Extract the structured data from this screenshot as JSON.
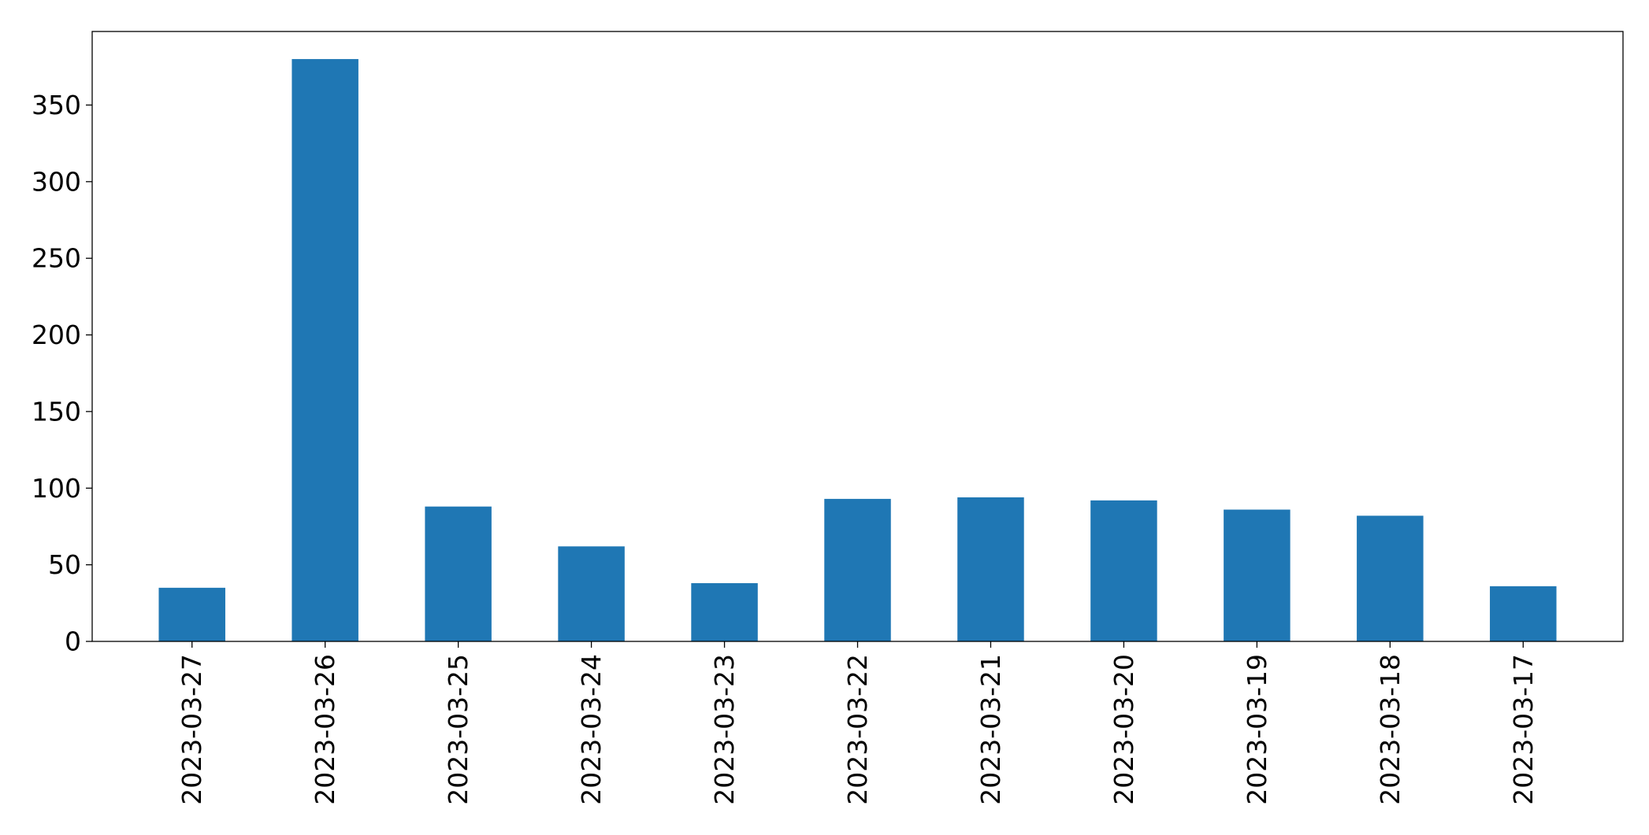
{
  "chart_data": {
    "type": "bar",
    "title": "",
    "xlabel": "",
    "ylabel": "",
    "categories": [
      "2023-03-27",
      "2023-03-26",
      "2023-03-25",
      "2023-03-24",
      "2023-03-23",
      "2023-03-22",
      "2023-03-21",
      "2023-03-20",
      "2023-03-19",
      "2023-03-18",
      "2023-03-17"
    ],
    "values": [
      35,
      380,
      88,
      62,
      38,
      93,
      94,
      92,
      86,
      82,
      36
    ],
    "ylim": [
      0,
      398
    ],
    "yticks": [
      0,
      50,
      100,
      150,
      200,
      250,
      300,
      350
    ],
    "bar_color": "#1f77b4",
    "grid": false,
    "legend": false
  }
}
